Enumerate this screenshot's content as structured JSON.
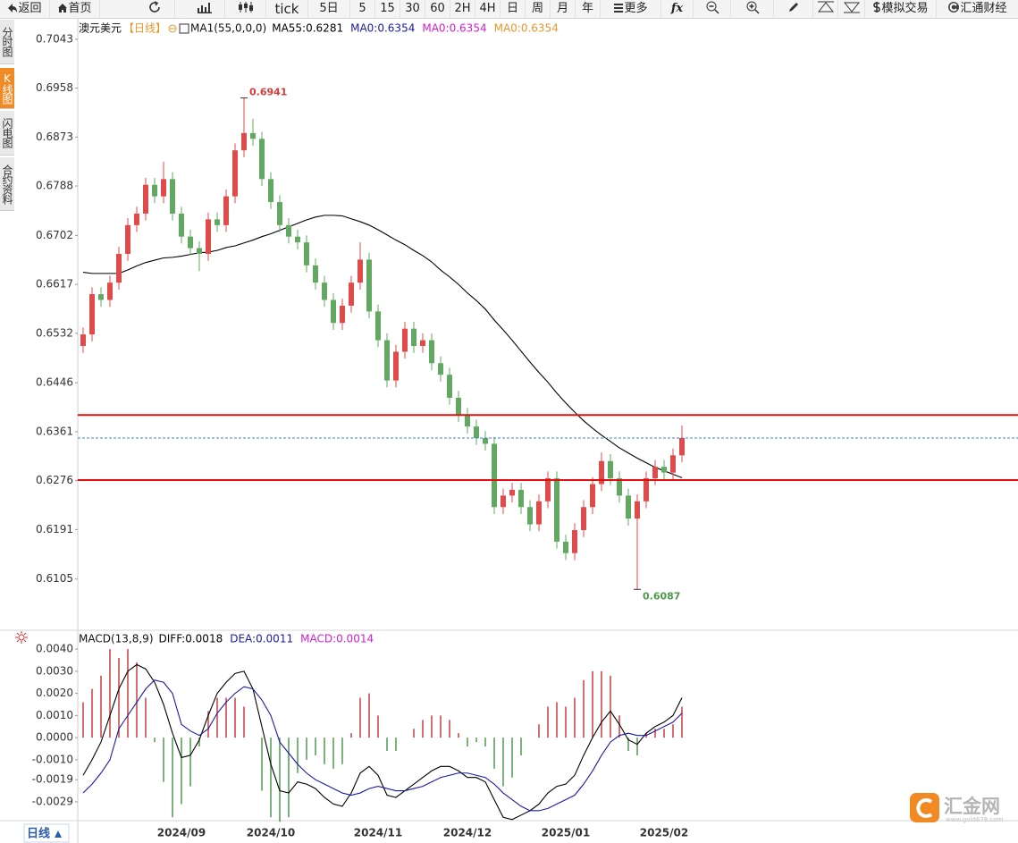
{
  "toolbar": [
    "返回",
    "首页",
    "tick",
    "5日",
    "5",
    "15",
    "30",
    "60",
    "2H",
    "4H",
    "日",
    "周",
    "月",
    "年",
    "更多",
    "fx",
    "模拟交易",
    "汇通财经"
  ],
  "sidebar": [
    "分时图",
    "K线图",
    "闪电图",
    "合约资料"
  ],
  "period_tab": "日线",
  "watermark": "汇金网",
  "watermark_url": "www.gold678.com",
  "chart_data": [
    {
      "type": "candlestick",
      "title": "澳元美元",
      "subtitle": "【日线】",
      "indicator": "MA1(55,0,0,0)",
      "legend": [
        {
          "name": "MA55:",
          "value": 0.6281,
          "color": "#000000"
        },
        {
          "name": "MA0:",
          "value": 0.6354,
          "color": "#1a1aa6"
        },
        {
          "name": "MA0:",
          "value": 0.6354,
          "color": "#d020d0"
        },
        {
          "name": "MA0:",
          "value": 0.6354,
          "color": "#e8962a"
        }
      ],
      "categories": [
        null,
        null,
        null,
        null,
        null,
        null,
        null,
        null,
        null,
        null,
        null,
        "2024/09",
        null,
        null,
        null,
        null,
        null,
        null,
        null,
        null,
        null,
        "2024/10",
        null,
        null,
        null,
        null,
        null,
        null,
        null,
        null,
        null,
        null,
        null,
        "2024/11",
        null,
        null,
        null,
        null,
        null,
        null,
        null,
        null,
        null,
        "2024/12",
        null,
        null,
        null,
        null,
        null,
        null,
        null,
        null,
        null,
        null,
        "2025/01",
        null,
        null,
        null,
        null,
        null,
        null,
        null,
        null,
        null,
        null,
        "2025/02",
        null,
        null
      ],
      "open": [
        0.651,
        0.653,
        0.66,
        0.659,
        0.662,
        0.667,
        0.672,
        0.674,
        0.679,
        0.677,
        0.68,
        0.674,
        0.67,
        0.668,
        0.667,
        0.673,
        0.672,
        0.677,
        0.685,
        0.688,
        0.687,
        0.68,
        0.676,
        0.672,
        0.67,
        0.669,
        0.665,
        0.662,
        0.659,
        0.655,
        0.658,
        0.662,
        0.666,
        0.657,
        0.652,
        0.645,
        0.65,
        0.654,
        0.651,
        0.652,
        0.648,
        0.646,
        0.642,
        0.639,
        0.637,
        0.635,
        0.634,
        0.623,
        0.625,
        0.626,
        0.623,
        0.62,
        0.624,
        0.628,
        0.617,
        0.615,
        0.619,
        0.623,
        0.627,
        0.631,
        0.628,
        0.625,
        0.621,
        0.624,
        0.628,
        0.63,
        0.629,
        0.632
      ],
      "high": [
        0.6542,
        0.6612,
        0.6612,
        0.6632,
        0.6682,
        0.6732,
        0.6752,
        0.6802,
        0.6802,
        0.683,
        0.6812,
        0.6752,
        0.6712,
        0.6692,
        0.6742,
        0.6742,
        0.6782,
        0.6862,
        0.6941,
        0.6905,
        0.6882,
        0.6812,
        0.6772,
        0.6732,
        0.6712,
        0.6702,
        0.6662,
        0.6632,
        0.6602,
        0.6592,
        0.6632,
        0.669,
        0.6672,
        0.6582,
        0.6532,
        0.6512,
        0.6552,
        0.6552,
        0.6532,
        0.6532,
        0.6492,
        0.6472,
        0.6432,
        0.6402,
        0.6382,
        0.6362,
        0.6352,
        0.6262,
        0.6272,
        0.6272,
        0.6242,
        0.6252,
        0.6292,
        0.6292,
        0.6182,
        0.6202,
        0.6242,
        0.6282,
        0.6325,
        0.6322,
        0.6292,
        0.6262,
        0.6252,
        0.6292,
        0.6312,
        0.6312,
        0.6332,
        0.6372
      ],
      "low": [
        0.6498,
        0.6518,
        0.6578,
        0.6578,
        0.6608,
        0.6658,
        0.6708,
        0.6728,
        0.6758,
        0.6758,
        0.6728,
        0.6688,
        0.6668,
        0.664,
        0.6658,
        0.6708,
        0.6708,
        0.6758,
        0.6838,
        0.6858,
        0.6788,
        0.6748,
        0.6708,
        0.6688,
        0.6678,
        0.6638,
        0.6608,
        0.6578,
        0.6538,
        0.6538,
        0.6568,
        0.6608,
        0.6558,
        0.6508,
        0.6438,
        0.6438,
        0.6488,
        0.6498,
        0.6498,
        0.6468,
        0.6448,
        0.6408,
        0.6378,
        0.6358,
        0.6338,
        0.6328,
        0.6218,
        0.6218,
        0.6238,
        0.6218,
        0.6188,
        0.6188,
        0.6228,
        0.6158,
        0.6138,
        0.6138,
        0.6178,
        0.6218,
        0.6258,
        0.6268,
        0.6238,
        0.6198,
        0.6087,
        0.6228,
        0.6268,
        0.6278,
        0.6278,
        0.6308
      ],
      "close": [
        0.653,
        0.66,
        0.659,
        0.662,
        0.667,
        0.672,
        0.674,
        0.679,
        0.677,
        0.68,
        0.674,
        0.67,
        0.668,
        0.667,
        0.673,
        0.672,
        0.677,
        0.685,
        0.688,
        0.687,
        0.68,
        0.676,
        0.672,
        0.67,
        0.669,
        0.665,
        0.662,
        0.659,
        0.655,
        0.658,
        0.662,
        0.666,
        0.657,
        0.652,
        0.645,
        0.65,
        0.654,
        0.651,
        0.652,
        0.648,
        0.646,
        0.642,
        0.639,
        0.637,
        0.635,
        0.634,
        0.623,
        0.625,
        0.626,
        0.623,
        0.62,
        0.624,
        0.628,
        0.617,
        0.615,
        0.619,
        0.623,
        0.627,
        0.631,
        0.628,
        0.625,
        0.621,
        0.624,
        0.628,
        0.63,
        0.629,
        0.632,
        0.635
      ],
      "up_color": "#dd4b4b",
      "down_color": "#62a862",
      "series": [
        {
          "color": "#000000",
          "values": [
            0.6638,
            0.6636,
            0.6636,
            0.6636,
            0.6636,
            0.6642,
            0.6649,
            0.6655,
            0.6659,
            0.6663,
            0.6664,
            0.6666,
            0.6669,
            0.6672,
            0.6673,
            0.6676,
            0.6681,
            0.6684,
            0.6689,
            0.6694,
            0.67,
            0.6705,
            0.6711,
            0.6717,
            0.6723,
            0.6729,
            0.6734,
            0.6737,
            0.6737,
            0.6736,
            0.6731,
            0.6726,
            0.672,
            0.6712,
            0.6703,
            0.6694,
            0.6686,
            0.6676,
            0.6667,
            0.6656,
            0.6642,
            0.663,
            0.6617,
            0.6602,
            0.6589,
            0.6574,
            0.6555,
            0.6538,
            0.652,
            0.6501,
            0.6482,
            0.6464,
            0.6447,
            0.6428,
            0.6411,
            0.6395,
            0.638,
            0.6367,
            0.6355,
            0.6344,
            0.6333,
            0.6324,
            0.6315,
            0.6307,
            0.6299,
            0.6293,
            0.6287,
            0.6281
          ]
        }
      ],
      "hlines": [
        {
          "value": 0.639,
          "color": "#e01010"
        },
        {
          "value": 0.6277,
          "color": "#e01010"
        },
        {
          "value": 0.635,
          "color": "#3a86c8",
          "dashed": true
        }
      ],
      "high_color": "#d83a3a",
      "low_color": "#4e9a4e",
      "ylim": [
        0.6016,
        0.7077
      ],
      "yticks": [
        0.7043,
        0.6958,
        0.6873,
        0.6788,
        0.6702,
        0.6617,
        0.6532,
        0.6446,
        0.6361,
        0.6276,
        0.6191,
        0.6105
      ],
      "grid": false
    },
    {
      "type": "macd",
      "title": "MACD(13,8,9)",
      "legend": [
        {
          "name": "DIFF:",
          "value": 0.0018,
          "color": "#000000"
        },
        {
          "name": "DEA:",
          "value": 0.0011,
          "color": "#1a1aa6"
        },
        {
          "name": "MACD:",
          "value": 0.0014,
          "color": "#d020d0"
        }
      ],
      "series": [
        {
          "type": "bar",
          "up_color": "#c84040",
          "down_color": "#4e9a4e",
          "values": [
            0.0016,
            0.0022,
            0.0028,
            0.004,
            0.0036,
            0.004,
            0.0034,
            0.0018,
            -0.0002,
            -0.002,
            -0.0036,
            -0.003,
            -0.0022,
            -0.0004,
            0.0012,
            0.0018,
            0.0018,
            0.0018,
            0.0014,
            0,
            -0.0024,
            -0.0036,
            -0.0038,
            -0.0036,
            -0.0016,
            -0.001,
            -0.0008,
            -0.0012,
            -0.0014,
            -0.0012,
            0.0002,
            0.0018,
            0.002,
            0.001,
            -0.0006,
            -0.0006,
            0,
            0.0004,
            0.0008,
            0.001,
            0.001,
            0.0008,
            0.0002,
            -0.0004,
            -0.0002,
            -0.0004,
            -0.0014,
            -0.0022,
            -0.0018,
            -0.0008,
            0,
            0.0006,
            0.0014,
            0.0016,
            0.0014,
            0.0018,
            0.0026,
            0.003,
            0.003,
            0.0028,
            0.001,
            -0.0006,
            -0.0008,
            0.0002,
            0.0004,
            0.0004,
            0.0006,
            0.0014
          ]
        },
        {
          "type": "line",
          "color": "#000000",
          "values": [
            -0.0017,
            -0.001,
            -0.0002,
            0.001,
            0.0022,
            0.003,
            0.0033,
            0.0031,
            0.0025,
            0.0015,
            0.0002,
            -0.0009,
            -0.0008,
            -0.0001,
            0.001,
            0.002,
            0.0025,
            0.0029,
            0.003,
            0.0022,
            0.0005,
            -0.0012,
            -0.0024,
            -0.0025,
            -0.002,
            -0.0021,
            -0.0023,
            -0.0027,
            -0.003,
            -0.0031,
            -0.0025,
            -0.0016,
            -0.0013,
            -0.0017,
            -0.0026,
            -0.0027,
            -0.0024,
            -0.0021,
            -0.0018,
            -0.0015,
            -0.0013,
            -0.0013,
            -0.0015,
            -0.0018,
            -0.0018,
            -0.002,
            -0.0028,
            -0.0036,
            -0.0037,
            -0.0035,
            -0.0033,
            -0.003,
            -0.0025,
            -0.0022,
            -0.0021,
            -0.0017,
            -0.0008,
            0,
            0.0007,
            0.0012,
            0.0006,
            -0.0001,
            -0.0003,
            0.0002,
            0.0005,
            0.0007,
            0.001,
            0.0018
          ]
        },
        {
          "type": "line",
          "color": "#1a1aa6",
          "values": [
            -0.0025,
            -0.0021,
            -0.0016,
            -0.001,
            0.0004,
            0.001,
            0.0016,
            0.0022,
            0.0026,
            0.0025,
            0.002,
            0.0006,
            0.0003,
            0.0001,
            0.0004,
            0.0011,
            0.0016,
            0.002,
            0.0023,
            0.0022,
            0.0017,
            0.001,
            -0.0002,
            -0.0007,
            -0.0012,
            -0.0016,
            -0.0019,
            -0.0021,
            -0.0023,
            -0.0025,
            -0.0026,
            -0.0025,
            -0.0023,
            -0.0022,
            -0.0023,
            -0.0024,
            -0.0024,
            -0.0023,
            -0.0022,
            -0.002,
            -0.0018,
            -0.0017,
            -0.0016,
            -0.0016,
            -0.0017,
            -0.0018,
            -0.0021,
            -0.0025,
            -0.0028,
            -0.0031,
            -0.0033,
            -0.0033,
            -0.0032,
            -0.003,
            -0.0028,
            -0.0026,
            -0.0021,
            -0.0015,
            -0.0008,
            -0.0002,
            0.0001,
            0.0002,
            0.0001,
            0.0001,
            0.0003,
            0.0005,
            0.0007,
            0.0011
          ]
        }
      ],
      "ylim": [
        -0.00375,
        0.00473
      ],
      "yticks": [
        {
          "value": 0.004,
          "label": "0.0040"
        },
        {
          "value": 0.003,
          "label": "0.0030"
        },
        {
          "value": 0.002,
          "label": "0.0020"
        },
        {
          "value": 0.001,
          "label": "0.0010"
        },
        {
          "value": 0,
          "label": "0.0000"
        },
        {
          "value": -0.001,
          "label": "-0.0010"
        },
        -0.0019,
        -0.0029
      ],
      "grid": false
    }
  ]
}
